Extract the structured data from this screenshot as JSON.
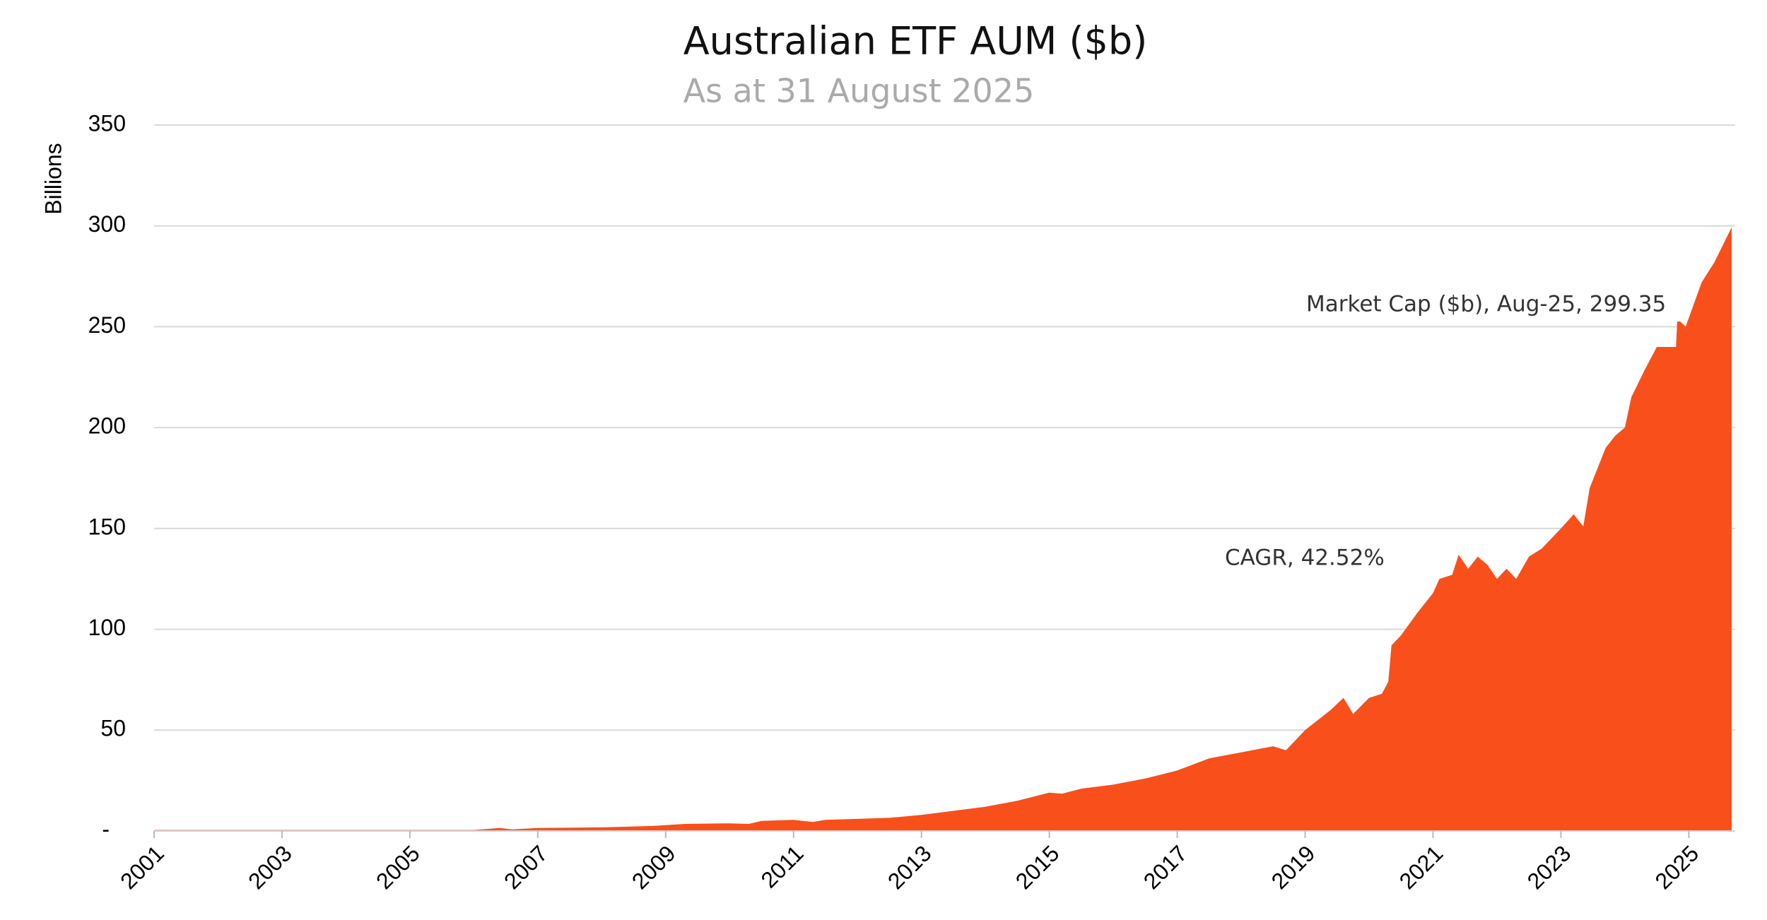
{
  "chart_data": {
    "type": "area",
    "title": "Australian ETF AUM ($b)",
    "subtitle": "As at 31 August 2025",
    "y_label": "Billions",
    "annotations": [
      "Market Cap ($b), Aug-25, 299.35",
      "CAGR, 42.52%"
    ],
    "color": "#f94f1b",
    "x": [
      2001,
      2002,
      2003,
      2004,
      2005,
      2006,
      2006.4,
      2006.6,
      2007,
      2008,
      2008.8,
      2009.3,
      2010,
      2010.3,
      2010.5,
      2011,
      2011.3,
      2011.5,
      2012,
      2012.5,
      2013,
      2013.5,
      2014,
      2014.5,
      2015,
      2015.2,
      2015.5,
      2016,
      2016.5,
      2017,
      2017.5,
      2018,
      2018.5,
      2018.7,
      2019,
      2019.4,
      2019.6,
      2019.75,
      2020,
      2020.2,
      2020.3,
      2020.35,
      2020.5,
      2020.75,
      2021,
      2021.1,
      2021.3,
      2021.4,
      2021.55,
      2021.7,
      2021.85,
      2022,
      2022.15,
      2022.3,
      2022.5,
      2022.7,
      2023,
      2023.2,
      2023.35,
      2023.45,
      2023.7,
      2023.85,
      2024,
      2024.1,
      2024.3,
      2024.5,
      2024.8,
      2024.82,
      2024.95,
      2025.2,
      2025.4,
      2025.67
    ],
    "values": [
      0.5,
      0.5,
      0.5,
      0.5,
      0.5,
      0.5,
      1.5,
      0.8,
      1.5,
      1.8,
      2.5,
      3.5,
      3.8,
      3.5,
      5,
      5.5,
      4.5,
      5.5,
      6,
      6.5,
      8,
      10,
      12,
      15,
      19,
      18.5,
      21,
      23,
      26,
      30,
      36,
      39,
      42,
      40,
      50,
      60,
      66,
      58,
      66,
      68,
      74,
      92,
      97,
      108,
      118,
      125,
      127,
      137,
      130,
      136,
      132,
      125,
      130,
      125,
      136,
      140,
      150,
      157,
      151,
      170,
      190,
      196,
      200,
      215,
      228,
      240,
      240,
      254,
      250,
      272,
      282,
      299.35
    ],
    "xlim": [
      2001,
      2025.67
    ],
    "xticks": [
      2001,
      2003,
      2005,
      2007,
      2009,
      2011,
      2013,
      2015,
      2017,
      2019,
      2021,
      2023,
      2025
    ],
    "ylim": [
      0,
      350
    ],
    "yticks": [
      {
        "value": 0,
        "label": "-"
      },
      50,
      100,
      150,
      200,
      250,
      300,
      350
    ],
    "grid": true
  }
}
